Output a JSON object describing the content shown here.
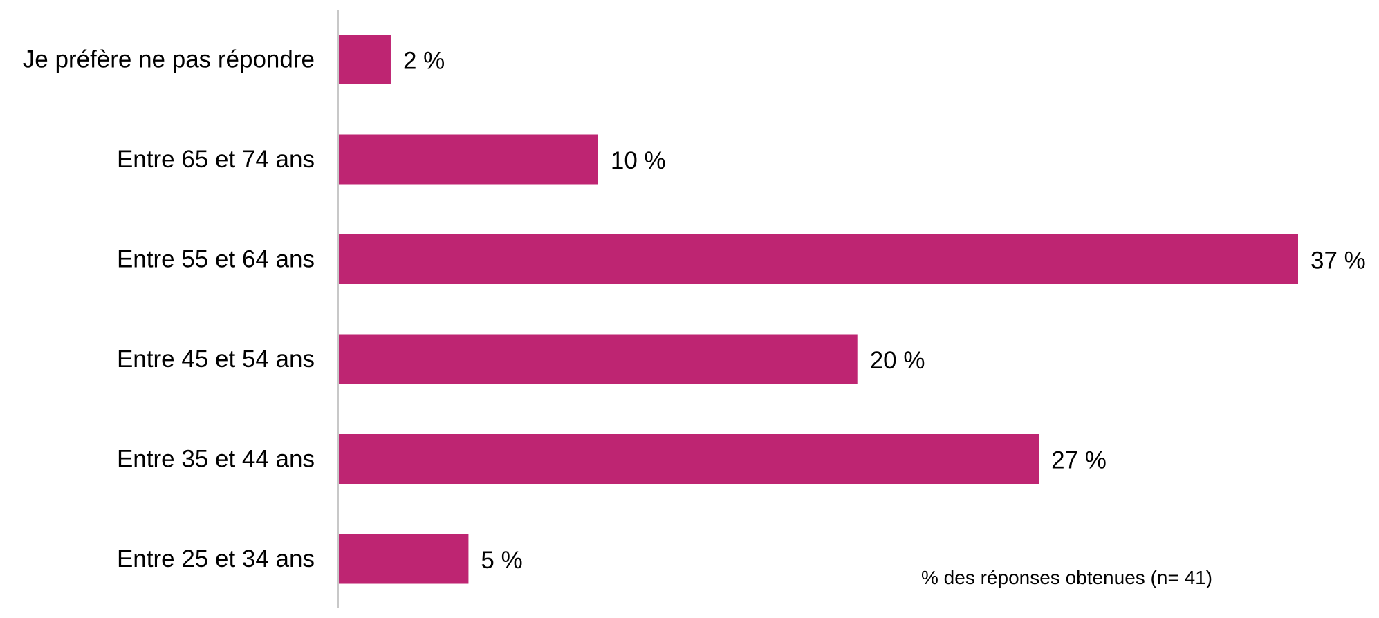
{
  "chart_data": {
    "type": "bar",
    "orientation": "horizontal",
    "categories": [
      "Je préfère ne pas répondre",
      "Entre 65 et 74 ans",
      "Entre 55 et 64 ans",
      "Entre 45 et 54 ans",
      "Entre 35 et 44 ans",
      "Entre 25 et 34 ans"
    ],
    "values": [
      2,
      10,
      37,
      20,
      27,
      5
    ],
    "value_labels": [
      "2 %",
      "10 %",
      "37 %",
      "20 %",
      "27 %",
      "5 %"
    ],
    "unit": "%",
    "xlim": [
      0,
      37
    ],
    "grid": false,
    "legend": "none",
    "annotation": "% des réponses obtenues  (n= 41)",
    "bar_color": "#BE2572",
    "axis_color": "#C8C8C8"
  }
}
